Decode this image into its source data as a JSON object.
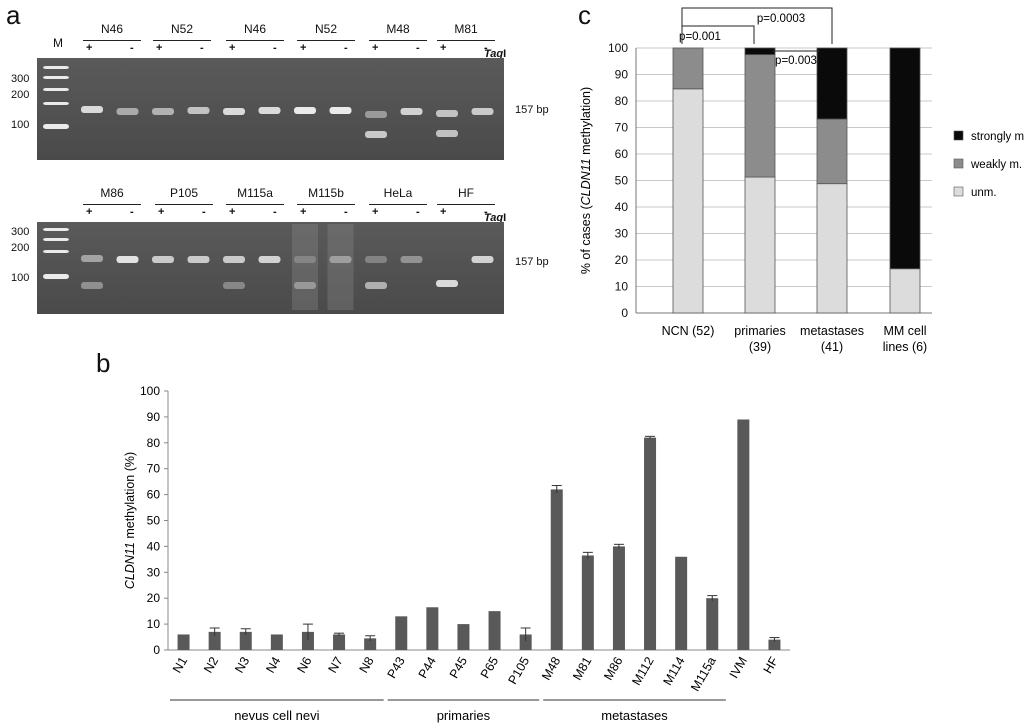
{
  "panel_a": {
    "letter": "a",
    "marker_label": "M",
    "enzyme_label": "Taq",
    "enzyme_suffix": "I",
    "bp_label": "157 bp",
    "ladder_labels": [
      "300",
      "200",
      "100"
    ],
    "top_samples": [
      "N46",
      "N52",
      "N46",
      "N52",
      "M48",
      "M81"
    ],
    "bottom_samples": [
      "M86",
      "P105",
      "M115a",
      "M115b",
      "HeLa",
      "HF"
    ],
    "plus": "+",
    "minus": "-"
  },
  "chart_data": [
    {
      "id": "b",
      "type": "bar",
      "panel_letter": "b",
      "ylabel_italic": "CLDN11",
      "ylabel_rest": " methylation (%)",
      "ylim": [
        0,
        100
      ],
      "yticks": [
        "0",
        "10",
        "20",
        "30",
        "40",
        "50",
        "60",
        "70",
        "80",
        "90",
        "100"
      ],
      "categories": [
        "N1",
        "N2",
        "N3",
        "N4",
        "N6",
        "N7",
        "N8",
        "P43",
        "P44",
        "P45",
        "P65",
        "P105",
        "M48",
        "M81",
        "M86",
        "M112",
        "M114",
        "M115a",
        "IVM",
        "HF"
      ],
      "values": [
        6,
        7,
        7,
        6,
        7,
        6,
        4.5,
        13,
        16.5,
        10,
        15,
        6,
        62,
        36.5,
        40,
        82,
        36,
        20,
        89,
        4
      ],
      "errors": [
        0,
        1.5,
        1.2,
        0,
        3,
        0.5,
        1,
        0,
        0,
        0,
        0,
        2.5,
        1.5,
        1.2,
        0.8,
        0.5,
        0,
        1,
        0,
        0.8
      ],
      "groups": [
        {
          "label": "nevus cell nevi",
          "from": 0,
          "to": 6
        },
        {
          "label": "primaries",
          "from": 7,
          "to": 11
        },
        {
          "label": "metastases",
          "from": 12,
          "to": 17
        }
      ],
      "bar_color": "#595959"
    },
    {
      "id": "c",
      "type": "bar",
      "stacked": true,
      "panel_letter": "c",
      "ylabel_pre": "% of cases (",
      "ylabel_italic": "CLDN11",
      "ylabel_post": " methylation)",
      "ylim": [
        0,
        100
      ],
      "yticks": [
        "0",
        "10",
        "20",
        "30",
        "40",
        "50",
        "60",
        "70",
        "80",
        "90",
        "100"
      ],
      "categories": [
        [
          "NCN (52)"
        ],
        [
          "primaries",
          "(39)"
        ],
        [
          "metastases",
          "(41)"
        ],
        [
          "MM cell",
          "lines (6)"
        ]
      ],
      "series": [
        {
          "name": "unm.",
          "color": "#dcdcdc",
          "values": [
            84.6,
            51.3,
            48.8,
            16.7
          ]
        },
        {
          "name": "weakly m.",
          "color": "#8c8c8c",
          "values": [
            15.4,
            46.2,
            24.4,
            0
          ]
        },
        {
          "name": "strongly m.",
          "color": "#0a0a0a",
          "values": [
            0,
            2.5,
            26.8,
            83.3
          ]
        }
      ],
      "legend_order": [
        "strongly m.",
        "weakly m.",
        "unm."
      ],
      "annotations": [
        "p=0.001",
        "p=0.0003",
        "p=0.003"
      ]
    }
  ]
}
